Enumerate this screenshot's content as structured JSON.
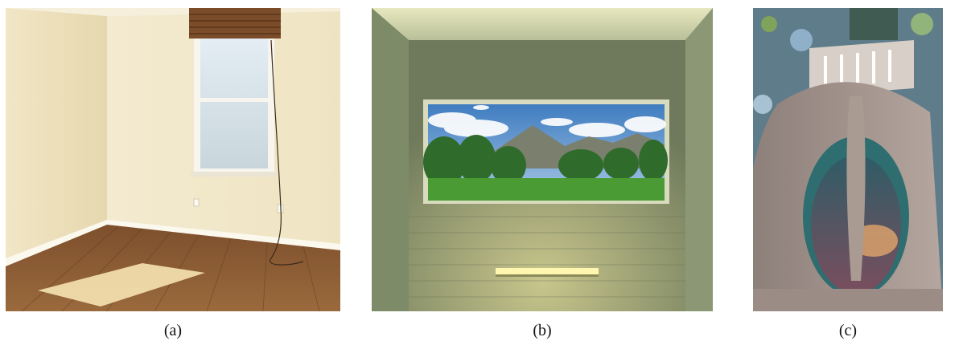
{
  "figure": {
    "panels": [
      {
        "label": "(a)",
        "scene": "empty-room-with-window"
      },
      {
        "label": "(b)",
        "scene": "window-framing-mountain-landscape"
      },
      {
        "label": "(c)",
        "scene": "ornate-organic-facade-window"
      }
    ],
    "colors": {
      "wall_cream": "#ece1bd",
      "floor_wood": "#8a5a33",
      "concrete_green": "#8f9a78",
      "sky_blue": "#4f86c6",
      "grass_green": "#3f8f2f",
      "stone_gray": "#a99b93",
      "glass_teal": "#3e7d7a"
    }
  }
}
